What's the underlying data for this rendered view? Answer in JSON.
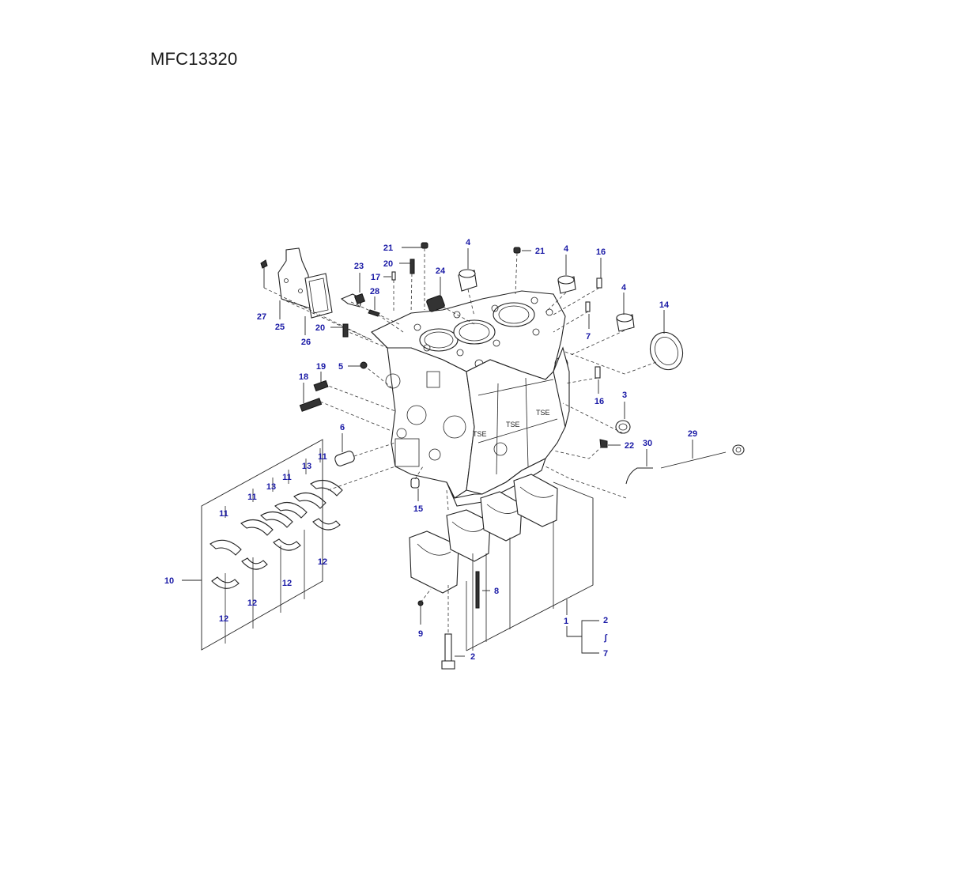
{
  "diagram": {
    "code": "MFC13320",
    "label_color": "#1a1aa6",
    "range_symbol": "∫",
    "callouts": {
      "c27": "27",
      "c25": "25",
      "c26": "26",
      "c23": "23",
      "c28": "28",
      "c21a": "21",
      "c20a": "20",
      "c17": "17",
      "c24": "24",
      "c4a": "4",
      "c21b": "21",
      "c4b": "4",
      "c16a": "16",
      "c4c": "4",
      "c14": "14",
      "c7a": "7",
      "c20b": "20",
      "c5": "5",
      "c19": "19",
      "c18": "18",
      "c16b": "16",
      "c3": "3",
      "c6": "6",
      "c22": "22",
      "c30": "30",
      "c29": "29",
      "c15": "15",
      "c11a": "11",
      "c13a": "13",
      "c11b": "11",
      "c11c": "11",
      "c13b": "13",
      "c11d": "11",
      "c12a": "12",
      "c12b": "12",
      "c12c": "12",
      "c12d": "12",
      "c10": "10",
      "c8": "8",
      "c9": "9",
      "c2a": "2",
      "c1": "1",
      "c2b": "2",
      "c7b": "7"
    }
  }
}
